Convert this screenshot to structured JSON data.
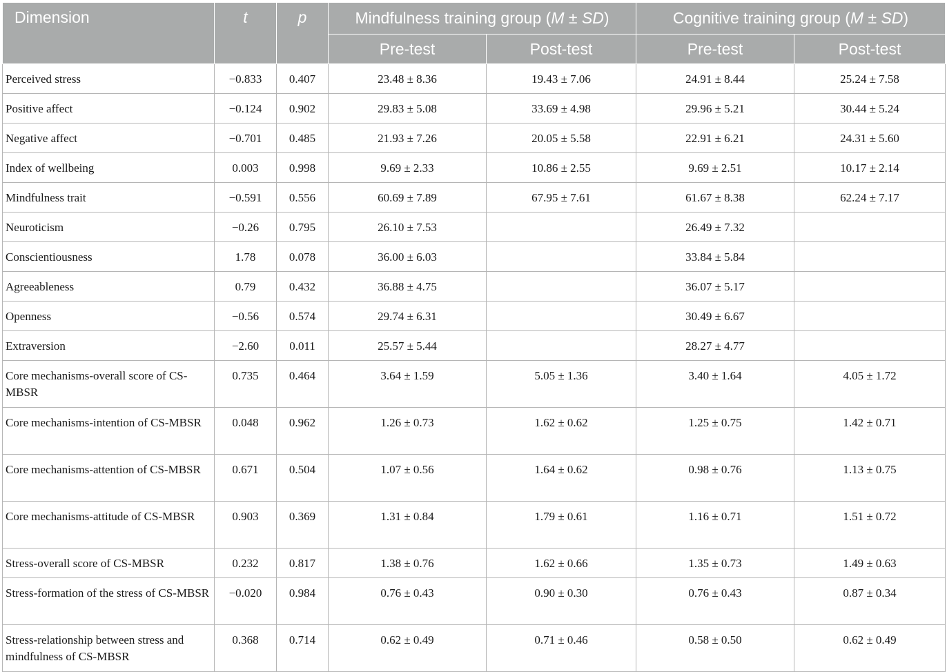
{
  "table": {
    "header": {
      "dimension": "Dimension",
      "t": "t",
      "p": "p",
      "group1_name": "Mindfulness training group (",
      "group2_name": "Cognitive training group (",
      "stat_m": "M",
      "stat_pm": " ± ",
      "stat_sd": "SD",
      "stat_close": ")",
      "pre": "Pre-test",
      "post": "Post-test"
    },
    "rows": [
      {
        "dimension": "Perceived stress",
        "t": "−0.833",
        "p": "0.407",
        "mt_pre": "23.48 ± 8.36",
        "mt_post": "19.43 ± 7.06",
        "ct_pre": "24.91 ± 8.44",
        "ct_post": "25.24 ± 7.58"
      },
      {
        "dimension": "Positive affect",
        "t": "−0.124",
        "p": "0.902",
        "mt_pre": "29.83 ± 5.08",
        "mt_post": "33.69 ± 4.98",
        "ct_pre": "29.96 ± 5.21",
        "ct_post": "30.44 ± 5.24"
      },
      {
        "dimension": "Negative affect",
        "t": "−0.701",
        "p": "0.485",
        "mt_pre": "21.93 ± 7.26",
        "mt_post": "20.05 ± 5.58",
        "ct_pre": "22.91 ± 6.21",
        "ct_post": "24.31 ± 5.60"
      },
      {
        "dimension": "Index of wellbeing",
        "t": "0.003",
        "p": "0.998",
        "mt_pre": "9.69 ± 2.33",
        "mt_post": "10.86 ± 2.55",
        "ct_pre": "9.69 ± 2.51",
        "ct_post": "10.17 ± 2.14"
      },
      {
        "dimension": "Mindfulness trait",
        "t": "−0.591",
        "p": "0.556",
        "mt_pre": "60.69 ± 7.89",
        "mt_post": "67.95 ± 7.61",
        "ct_pre": "61.67 ± 8.38",
        "ct_post": "62.24 ± 7.17"
      },
      {
        "dimension": "Neuroticism",
        "t": "−0.26",
        "p": "0.795",
        "mt_pre": "26.10 ± 7.53",
        "mt_post": "",
        "ct_pre": "26.49 ± 7.32",
        "ct_post": ""
      },
      {
        "dimension": "Conscientiousness",
        "t": "1.78",
        "p": "0.078",
        "mt_pre": "36.00 ± 6.03",
        "mt_post": "",
        "ct_pre": "33.84 ± 5.84",
        "ct_post": ""
      },
      {
        "dimension": "Agreeableness",
        "t": "0.79",
        "p": "0.432",
        "mt_pre": "36.88 ± 4.75",
        "mt_post": "",
        "ct_pre": "36.07 ± 5.17",
        "ct_post": ""
      },
      {
        "dimension": "Openness",
        "t": "−0.56",
        "p": "0.574",
        "mt_pre": "29.74 ± 6.31",
        "mt_post": "",
        "ct_pre": "30.49 ± 6.67",
        "ct_post": ""
      },
      {
        "dimension": "Extraversion",
        "t": "−2.60",
        "p": "0.011",
        "mt_pre": "25.57 ± 5.44",
        "mt_post": "",
        "ct_pre": "28.27 ± 4.77",
        "ct_post": ""
      },
      {
        "dimension": "Core mechanisms-overall score of CS-MBSR",
        "t": "0.735",
        "p": "0.464",
        "mt_pre": "3.64 ± 1.59",
        "mt_post": "5.05 ± 1.36",
        "ct_pre": "3.40 ± 1.64",
        "ct_post": "4.05 ± 1.72"
      },
      {
        "dimension": "Core mechanisms-intention of CS-MBSR",
        "t": "0.048",
        "p": "0.962",
        "mt_pre": "1.26 ± 0.73",
        "mt_post": "1.62 ± 0.62",
        "ct_pre": "1.25 ± 0.75",
        "ct_post": "1.42 ± 0.71"
      },
      {
        "dimension": "Core mechanisms-attention of CS-MBSR",
        "t": "0.671",
        "p": "0.504",
        "mt_pre": "1.07 ± 0.56",
        "mt_post": "1.64 ± 0.62",
        "ct_pre": "0.98 ± 0.76",
        "ct_post": "1.13 ± 0.75"
      },
      {
        "dimension": "Core mechanisms-attitude of CS-MBSR",
        "t": "0.903",
        "p": "0.369",
        "mt_pre": "1.31 ± 0.84",
        "mt_post": "1.79 ± 0.61",
        "ct_pre": "1.16 ± 0.71",
        "ct_post": "1.51 ± 0.72"
      },
      {
        "dimension": "Stress-overall score of CS-MBSR",
        "t": "0.232",
        "p": "0.817",
        "mt_pre": "1.38 ± 0.76",
        "mt_post": "1.62 ± 0.66",
        "ct_pre": "1.35 ± 0.73",
        "ct_post": "1.49 ± 0.63"
      },
      {
        "dimension": "Stress-formation of the stress of CS-MBSR",
        "t": "−0.020",
        "p": "0.984",
        "mt_pre": "0.76 ± 0.43",
        "mt_post": "0.90 ± 0.30",
        "ct_pre": "0.76 ± 0.43",
        "ct_post": "0.87 ± 0.34"
      },
      {
        "dimension": "Stress-relationship between stress and mindfulness of CS-MBSR",
        "t": "0.368",
        "p": "0.714",
        "mt_pre": "0.62 ± 0.49",
        "mt_post": "0.71 ± 0.46",
        "ct_pre": "0.58 ± 0.50",
        "ct_post": "0.62 ± 0.49"
      }
    ]
  }
}
